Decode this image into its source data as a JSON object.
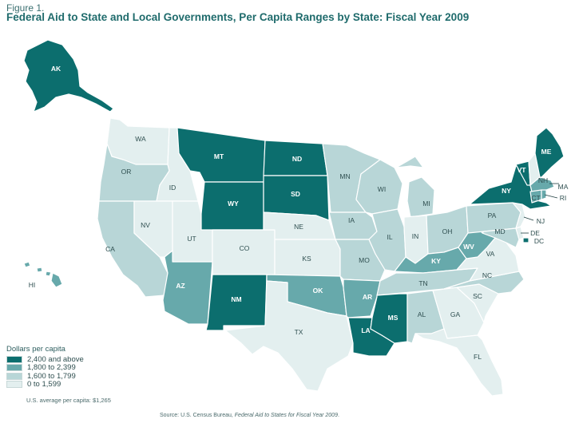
{
  "figure_label": "Figure 1.",
  "title": "Federal Aid to State and Local Governments, Per Capita Ranges by State: Fiscal Year 2009",
  "legend": {
    "title": "Dollars per capita",
    "items": [
      {
        "label": "2,400 and above",
        "color": "#0c6e6e",
        "level": 4
      },
      {
        "label": "1,800 to 2,399",
        "color": "#67a9ab",
        "level": 3
      },
      {
        "label": "1,600 to 1,799",
        "color": "#b8d6d7",
        "level": 2
      },
      {
        "label": "0 to 1,599",
        "color": "#e3efef",
        "level": 1
      }
    ]
  },
  "average": "U.S. average per capita: $1,265",
  "source": {
    "prefix": "Source: U.S. Census Bureau, ",
    "publication": "Federal Aid to States for Fiscal Year 2009",
    "suffix": "."
  },
  "states": {
    "AK": 4,
    "HI": 3,
    "WA": 1,
    "OR": 2,
    "CA": 2,
    "ID": 1,
    "NV": 1,
    "UT": 1,
    "AZ": 3,
    "MT": 4,
    "WY": 4,
    "CO": 1,
    "NM": 4,
    "ND": 4,
    "SD": 4,
    "NE": 1,
    "KS": 1,
    "OK": 3,
    "TX": 1,
    "MN": 2,
    "IA": 2,
    "MO": 2,
    "AR": 3,
    "LA": 4,
    "WI": 2,
    "IL": 2,
    "MI": 2,
    "IN": 1,
    "OH": 2,
    "KY": 3,
    "TN": 2,
    "MS": 4,
    "AL": 2,
    "GA": 1,
    "FL": 1,
    "SC": 1,
    "NC": 2,
    "VA": 1,
    "WV": 3,
    "PA": 2,
    "NY": 4,
    "VT": 4,
    "NH": 1,
    "ME": 4,
    "MA": 3,
    "CT": 3,
    "RI": 3,
    "NJ": 1,
    "DE": 1,
    "MD": 2,
    "DC": 4
  }
}
